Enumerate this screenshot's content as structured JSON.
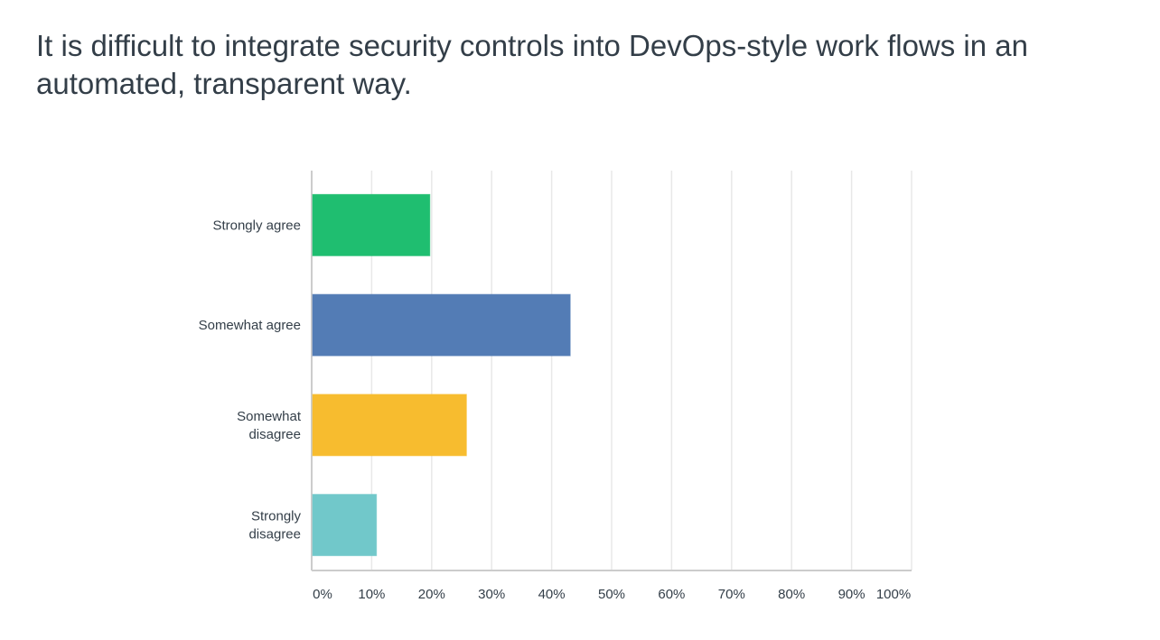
{
  "chart_data": {
    "type": "bar",
    "orientation": "horizontal",
    "title": "It is difficult to integrate security controls into DevOps-style work flows in an automated, transparent way.",
    "categories": [
      "Strongly agree",
      "Somewhat agree",
      "Somewhat disagree",
      "Strongly disagree"
    ],
    "values": [
      19.7,
      43.1,
      25.8,
      10.8
    ],
    "colors": [
      "#1fbe70",
      "#537cb5",
      "#f7bc2f",
      "#71c8ca"
    ],
    "xlim": [
      0,
      100
    ],
    "xticks": [
      "0%",
      "10%",
      "20%",
      "30%",
      "40%",
      "50%",
      "60%",
      "70%",
      "80%",
      "90%",
      "100%"
    ],
    "unit": "%",
    "grid": true,
    "legend": "none"
  }
}
